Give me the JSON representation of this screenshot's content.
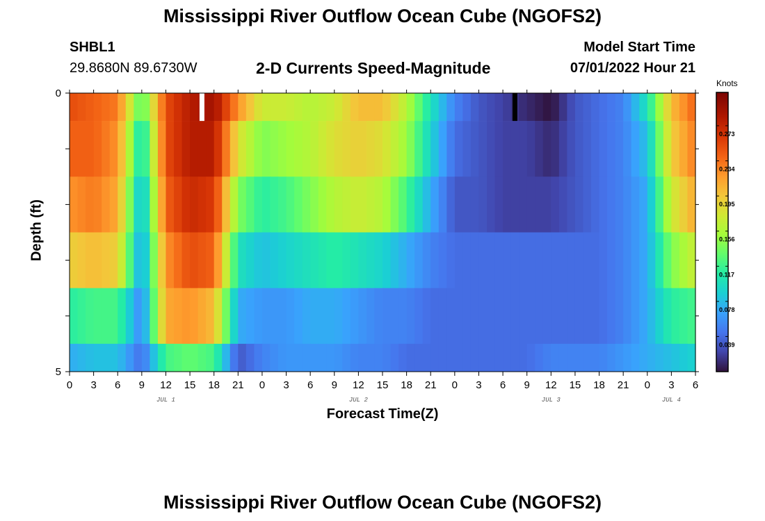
{
  "header": {
    "title": "Mississippi River Outflow Ocean Cube (NGOFS2)",
    "station": "SHBL1",
    "coords": "29.8680N  89.6730W",
    "subtitle": "2-D Currents Speed-Magnitude",
    "model_start_label": "Model Start Time",
    "model_start_value": "07/01/2022 Hour 21"
  },
  "footer": {
    "title": "Mississippi River Outflow Ocean Cube (NGOFS2)"
  },
  "chart_data": {
    "type": "heatmap",
    "xlabel": "Forecast Time(Z)",
    "ylabel": "Depth (ft)",
    "colorbar_label": "Knots",
    "x_tick_labels": [
      "0",
      "3",
      "6",
      "9",
      "12",
      "15",
      "18",
      "21",
      "0",
      "3",
      "6",
      "9",
      "12",
      "15",
      "18",
      "21",
      "0",
      "3",
      "6",
      "9",
      "12",
      "15",
      "18",
      "21",
      "0",
      "3",
      "6"
    ],
    "x_range_hours": [
      0,
      78
    ],
    "day_labels": [
      {
        "label": "JUL 1",
        "hour": 12
      },
      {
        "label": "JUL 2",
        "hour": 36
      },
      {
        "label": "JUL 3",
        "hour": 60
      },
      {
        "label": "JUL 4",
        "hour": 75
      }
    ],
    "y_tick_labels": [
      "0",
      "5"
    ],
    "ylim": [
      0,
      5
    ],
    "colorbar_ticks": [
      0.039,
      0.078,
      0.117,
      0.156,
      0.195,
      0.234,
      0.273
    ],
    "color_range": [
      0.0,
      0.31
    ],
    "depth_layers": [
      0.5,
      1.5,
      2.5,
      3.5,
      4.5
    ],
    "layer_boundaries": [
      0,
      0.5,
      1.5,
      2.5,
      3.5,
      4.5,
      5
    ],
    "time_hours": [
      0,
      3,
      6,
      9,
      12,
      15,
      18,
      21,
      24,
      27,
      30,
      33,
      36,
      39,
      42,
      45,
      48,
      51,
      54,
      57,
      60,
      63,
      66,
      69,
      72,
      75,
      78
    ],
    "speed_knots": [
      [
        0.25,
        0.24,
        0.23,
        0.12,
        0.25,
        0.28,
        0.29,
        0.22,
        0.17,
        0.17,
        0.16,
        0.17,
        0.2,
        0.2,
        0.16,
        0.1,
        0.05,
        0.03,
        0.02,
        0.01,
        0.0,
        0.03,
        0.04,
        0.05,
        0.1,
        0.2,
        0.24
      ],
      [
        0.24,
        0.24,
        0.22,
        0.09,
        0.25,
        0.28,
        0.28,
        0.18,
        0.14,
        0.15,
        0.16,
        0.18,
        0.19,
        0.18,
        0.15,
        0.09,
        0.04,
        0.03,
        0.02,
        0.02,
        0.01,
        0.03,
        0.04,
        0.05,
        0.08,
        0.19,
        0.23
      ],
      [
        0.22,
        0.23,
        0.21,
        0.07,
        0.24,
        0.27,
        0.26,
        0.14,
        0.11,
        0.12,
        0.14,
        0.16,
        0.17,
        0.16,
        0.12,
        0.07,
        0.03,
        0.03,
        0.02,
        0.02,
        0.02,
        0.03,
        0.04,
        0.05,
        0.07,
        0.17,
        0.21
      ],
      [
        0.19,
        0.2,
        0.19,
        0.06,
        0.22,
        0.25,
        0.24,
        0.1,
        0.08,
        0.09,
        0.1,
        0.11,
        0.1,
        0.09,
        0.07,
        0.05,
        0.04,
        0.04,
        0.04,
        0.04,
        0.04,
        0.04,
        0.04,
        0.05,
        0.07,
        0.14,
        0.17
      ],
      [
        0.11,
        0.12,
        0.12,
        0.05,
        0.21,
        0.22,
        0.2,
        0.07,
        0.06,
        0.06,
        0.07,
        0.07,
        0.06,
        0.05,
        0.05,
        0.04,
        0.04,
        0.04,
        0.04,
        0.04,
        0.04,
        0.04,
        0.04,
        0.05,
        0.07,
        0.11,
        0.12
      ],
      [
        0.07,
        0.08,
        0.08,
        0.04,
        0.12,
        0.13,
        0.12,
        0.03,
        0.05,
        0.06,
        0.06,
        0.06,
        0.05,
        0.05,
        0.04,
        0.04,
        0.04,
        0.04,
        0.04,
        0.04,
        0.05,
        0.05,
        0.05,
        0.06,
        0.07,
        0.08,
        0.09
      ]
    ],
    "missing_cells": [
      {
        "hour": 16.5,
        "layer": 0,
        "note": "white gap"
      },
      {
        "hour": 55.5,
        "layer": 0,
        "note": "black extreme"
      }
    ]
  }
}
